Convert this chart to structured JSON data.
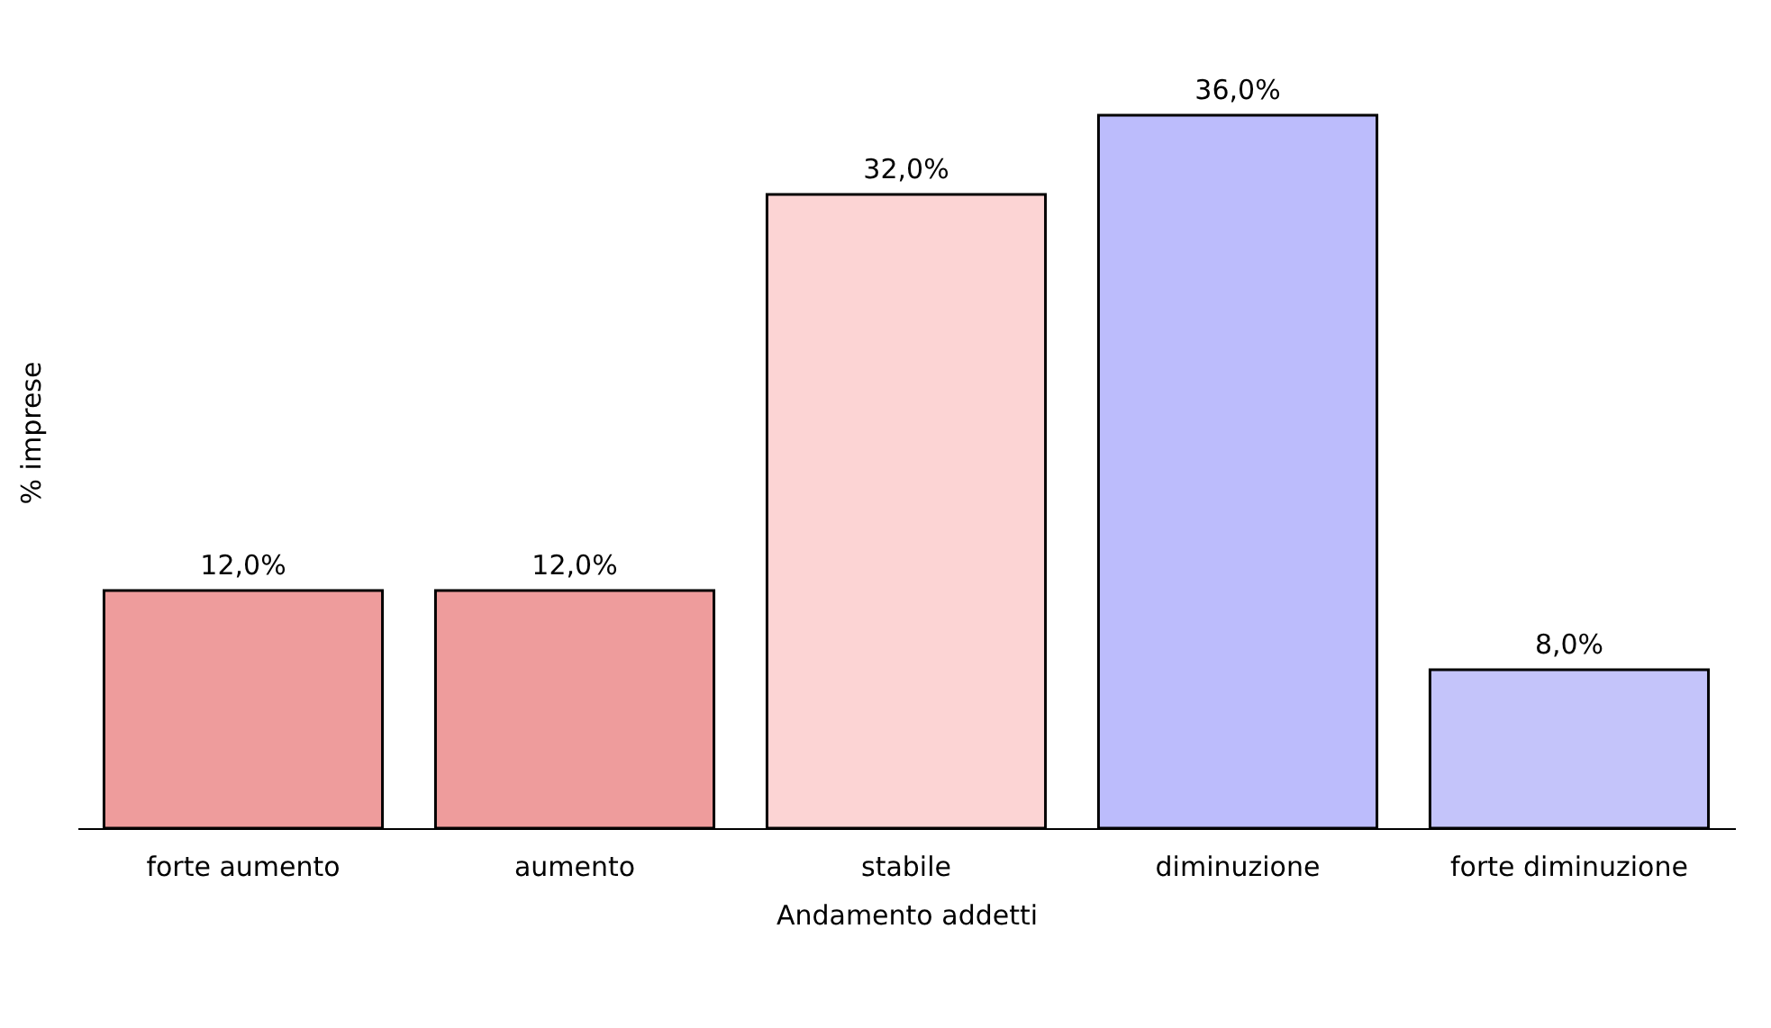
{
  "chart_data": {
    "type": "bar",
    "xlabel": "Andamento addetti",
    "ylabel": "% imprese",
    "categories": [
      "forte aumento",
      "aumento",
      "stabile",
      "diminuzione",
      "forte diminuzione"
    ],
    "values": [
      12,
      12,
      32,
      36,
      8
    ],
    "value_labels": [
      "12,0%",
      "12,0%",
      "32,0%",
      "36,0%",
      "8,0%"
    ],
    "colors": [
      "#ee9c9c",
      "#ee9c9c",
      "#fcd4d4",
      "#bcbcfc",
      "#c4c4fa"
    ],
    "grid": false
  }
}
